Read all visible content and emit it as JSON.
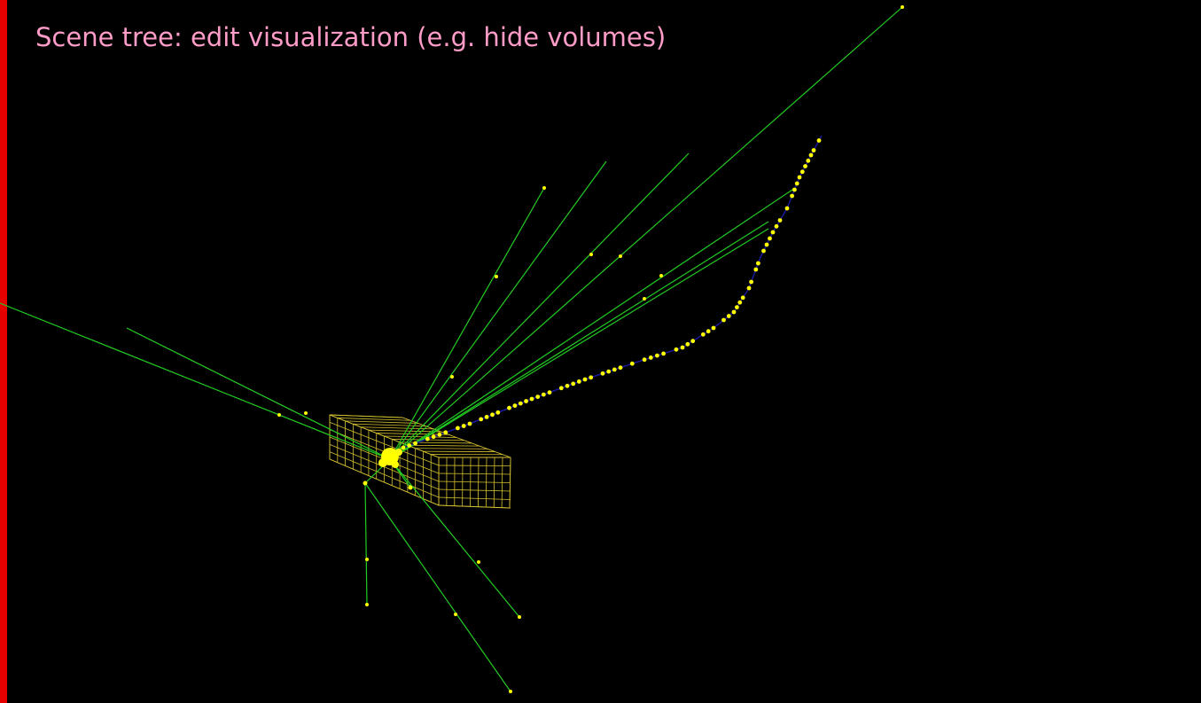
{
  "slide": {
    "title": "Scene tree: edit visualization (e.g. hide volumes)",
    "background_color": "#000000",
    "accent_bar_color": "#e60000",
    "title_color": "#ff9cc8"
  },
  "event_display": {
    "icon": "event-display-3d-view",
    "colors": {
      "track": "#22cc22",
      "hit": "#ffff00",
      "muon_track": "#1a1a9a",
      "detector_wireframe": "#d4c030"
    }
  }
}
